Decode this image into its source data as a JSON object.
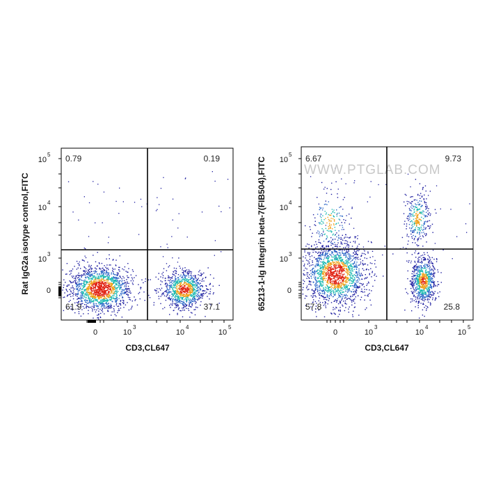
{
  "watermark": "WWW.PTGLAB.COM",
  "colors": {
    "density_low": "#1a1a9e",
    "density_mid": "#18b8b0",
    "density_high": "#f0a018",
    "density_peak": "#e02010",
    "gate": "#000000"
  },
  "chart_data": [
    {
      "type": "scatter",
      "subtype": "flow-cytometry-density",
      "xlabel": "CD3,CL647",
      "ylabel": "Rat IgG2a isotype control,FITC",
      "x_ticks": [
        {
          "base": "0",
          "exp": ""
        },
        {
          "base": "10",
          "exp": "3"
        },
        {
          "base": "10",
          "exp": "4"
        },
        {
          "base": "10",
          "exp": "5"
        }
      ],
      "y_ticks": [
        {
          "base": "0",
          "exp": ""
        },
        {
          "base": "10",
          "exp": "3"
        },
        {
          "base": "10",
          "exp": "4"
        },
        {
          "base": "10",
          "exp": "5"
        }
      ],
      "quadrants": {
        "upper_left": "0.79",
        "upper_right": "0.19",
        "lower_left": "61.9",
        "lower_right": "37.1"
      },
      "populations": [
        {
          "x": 80,
          "y": 20,
          "share": 0.62
        },
        {
          "x": 12000,
          "y": 10,
          "share": 0.37
        }
      ]
    },
    {
      "type": "scatter",
      "subtype": "flow-cytometry-density",
      "xlabel": "CD3,CL647",
      "ylabel": "65213-1-Ig Integrin beta-7(FIB504),FITC",
      "x_ticks": [
        {
          "base": "0",
          "exp": ""
        },
        {
          "base": "10",
          "exp": "3"
        },
        {
          "base": "10",
          "exp": "4"
        },
        {
          "base": "10",
          "exp": "5"
        }
      ],
      "y_ticks": [
        {
          "base": "0",
          "exp": ""
        },
        {
          "base": "10",
          "exp": "3"
        },
        {
          "base": "10",
          "exp": "4"
        },
        {
          "base": "10",
          "exp": "5"
        }
      ],
      "quadrants": {
        "upper_left": "6.67",
        "upper_right": "9.73",
        "lower_left": "57.8",
        "lower_right": "25.8"
      },
      "populations": [
        {
          "x": 0,
          "y": 400,
          "share": 0.58
        },
        {
          "x": 12000,
          "y": 200,
          "share": 0.26
        },
        {
          "x": 9000,
          "y": 6000,
          "share": 0.1
        },
        {
          "x": -200,
          "y": 5000,
          "share": 0.06
        }
      ]
    }
  ]
}
